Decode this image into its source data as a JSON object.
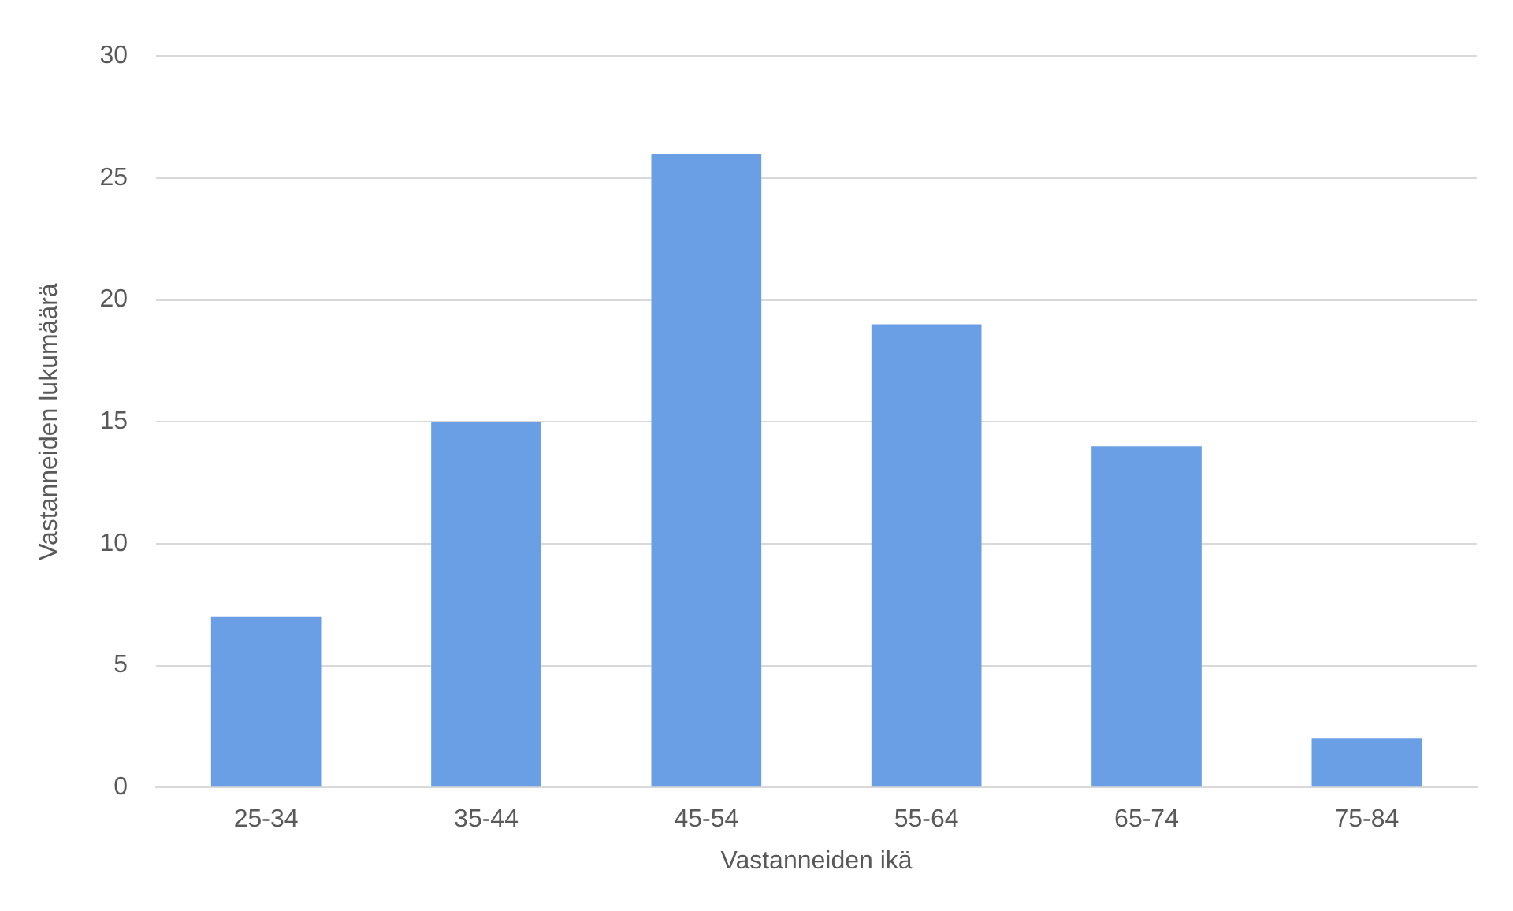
{
  "chart_data": {
    "type": "bar",
    "xlabel": "Vastanneiden ikä",
    "ylabel": "Vastanneiden lukumäärä",
    "categories": [
      "25-34",
      "35-44",
      "45-54",
      "55-64",
      "65-74",
      "75-84"
    ],
    "values": [
      7,
      15,
      26,
      19,
      14,
      2
    ],
    "color": "#6a9fe6",
    "ylim": [
      0,
      30
    ],
    "yticks": [
      0,
      5,
      10,
      15,
      20,
      25,
      30
    ],
    "grid": "y",
    "legend": false
  }
}
